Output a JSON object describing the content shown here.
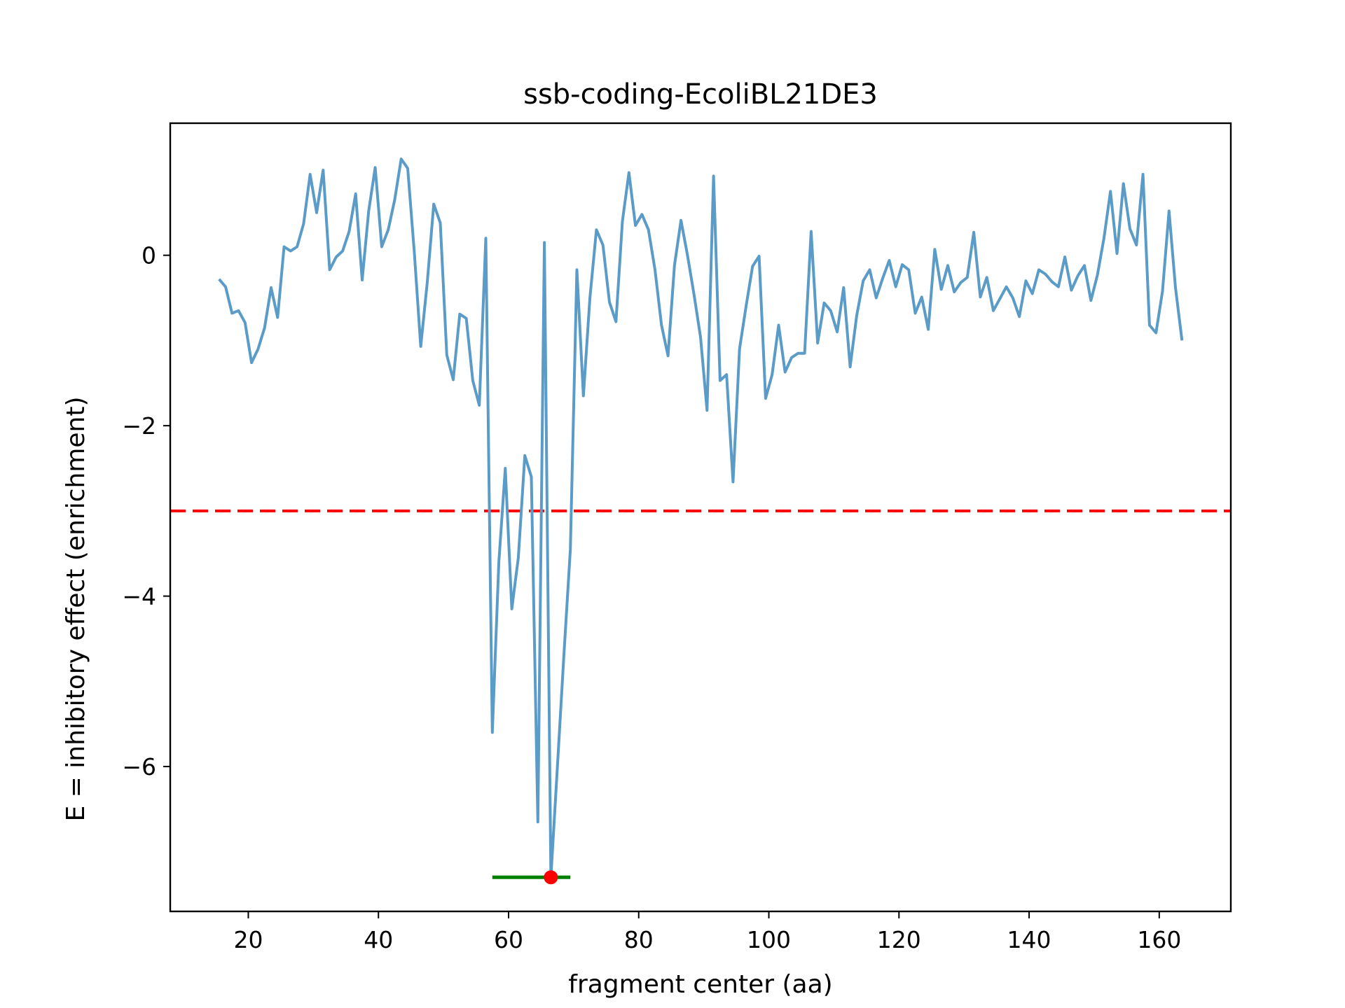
{
  "chart_data": {
    "type": "line",
    "title": "ssb-coding-EcoliBL21DE3",
    "xlabel": "fragment center (aa)",
    "ylabel": "E = inhibitory effect (enrichment)",
    "xlim": [
      8,
      171
    ],
    "ylim": [
      -7.7,
      1.55
    ],
    "xticks": [
      20,
      40,
      60,
      80,
      100,
      120,
      140,
      160
    ],
    "yticks": [
      0,
      -2,
      -4,
      -6
    ],
    "ytick_labels": [
      "0",
      "−2",
      "−4",
      "−6"
    ],
    "grid": false,
    "colors": {
      "series": "#5b9bc8",
      "threshold": "#ff0000",
      "range": "#008000",
      "marker": "#ff0000"
    },
    "series": [
      {
        "x": [
          15.5,
          16.5,
          17.5,
          18.5,
          19.5,
          20.5,
          21.5,
          22.5,
          23.5,
          24.5,
          25.5,
          26.5,
          27.5,
          28.5,
          29.5,
          30.5,
          31.5,
          32.5,
          33.5,
          34.5,
          35.5,
          36.5,
          37.5,
          38.5,
          39.5,
          40.5,
          41.5,
          42.5,
          43.5,
          44.5,
          45.5,
          46.5,
          47.5,
          48.5,
          49.5,
          50.5,
          51.5,
          52.5,
          53.5,
          54.5,
          55.5,
          56.5,
          57.5,
          58.5,
          59.5,
          60.5,
          61.5,
          62.5,
          63.5,
          64.5,
          65.5,
          66.5,
          67.5,
          68.5,
          69.5,
          70.5,
          71.5,
          72.5,
          73.5,
          74.5,
          75.5,
          76.5,
          77.5,
          78.5,
          79.5,
          80.5,
          81.5,
          82.5,
          83.5,
          84.5,
          85.5,
          86.5,
          87.5,
          88.5,
          89.5,
          90.5,
          91.5,
          92.5,
          93.5,
          94.5,
          95.5,
          96.5,
          97.5,
          98.5,
          99.5,
          100.5,
          101.5,
          102.5,
          103.5,
          104.5,
          105.5,
          106.5,
          107.5,
          108.5,
          109.5,
          110.5,
          111.5,
          112.5,
          113.5,
          114.5,
          115.5,
          116.5,
          117.5,
          118.5,
          119.5,
          120.5,
          121.5,
          122.5,
          123.5,
          124.5,
          125.5,
          126.5,
          127.5,
          128.5,
          129.5,
          130.5,
          131.5,
          132.5,
          133.5,
          134.5,
          135.5,
          136.5,
          137.5,
          138.5,
          139.5,
          140.5,
          141.5,
          142.5,
          143.5,
          144.5,
          145.5,
          146.5,
          147.5,
          148.5,
          149.5,
          150.5,
          151.5,
          152.5,
          153.5,
          154.5,
          155.5,
          156.5,
          157.5,
          158.5,
          159.5,
          160.5,
          161.5,
          162.5,
          163.5
        ],
        "values": [
          -0.28,
          -0.37,
          -0.68,
          -0.65,
          -0.79,
          -1.26,
          -1.1,
          -0.85,
          -0.38,
          -0.73,
          0.1,
          0.05,
          0.1,
          0.37,
          0.95,
          0.5,
          1.0,
          -0.17,
          -0.02,
          0.05,
          0.28,
          0.72,
          -0.29,
          0.52,
          1.03,
          0.1,
          0.3,
          0.65,
          1.13,
          1.02,
          0.05,
          -1.07,
          -0.32,
          0.6,
          0.38,
          -1.17,
          -1.46,
          -0.69,
          -0.74,
          -1.47,
          -1.76,
          0.2,
          -5.6,
          -3.6,
          -2.5,
          -4.15,
          -3.55,
          -2.35,
          -2.6,
          -6.65,
          0.15,
          -7.3,
          -6.0,
          -4.7,
          -3.45,
          -0.17,
          -1.65,
          -0.5,
          0.3,
          0.12,
          -0.55,
          -0.78,
          0.4,
          0.97,
          0.35,
          0.48,
          0.3,
          -0.17,
          -0.82,
          -1.18,
          -0.12,
          0.41,
          0.0,
          -0.46,
          -0.96,
          -1.82,
          0.93,
          -1.47,
          -1.4,
          -2.66,
          -1.1,
          -0.6,
          -0.13,
          -0.01,
          -1.68,
          -1.4,
          -0.82,
          -1.37,
          -1.2,
          -1.15,
          -1.15,
          0.28,
          -1.03,
          -0.56,
          -0.65,
          -0.9,
          -0.38,
          -1.31,
          -0.71,
          -0.3,
          -0.17,
          -0.5,
          -0.27,
          -0.06,
          -0.37,
          -0.11,
          -0.17,
          -0.68,
          -0.49,
          -0.87,
          0.07,
          -0.4,
          -0.12,
          -0.43,
          -0.32,
          -0.26,
          0.27,
          -0.49,
          -0.26,
          -0.65,
          -0.51,
          -0.37,
          -0.5,
          -0.72,
          -0.3,
          -0.45,
          -0.17,
          -0.22,
          -0.31,
          -0.37,
          -0.02,
          -0.41,
          -0.24,
          -0.12,
          -0.53,
          -0.23,
          0.2,
          0.75,
          0.02,
          0.84,
          0.31,
          0.12,
          0.95,
          -0.82,
          -0.91,
          -0.42,
          0.52,
          -0.38,
          -1.0
        ]
      }
    ],
    "threshold": {
      "y": -3.0,
      "style": "dashed"
    },
    "range_segment": {
      "x_start": 57.5,
      "x_end": 69.5,
      "y": -7.3
    },
    "min_marker": {
      "x": 66.5,
      "y": -7.3
    }
  }
}
